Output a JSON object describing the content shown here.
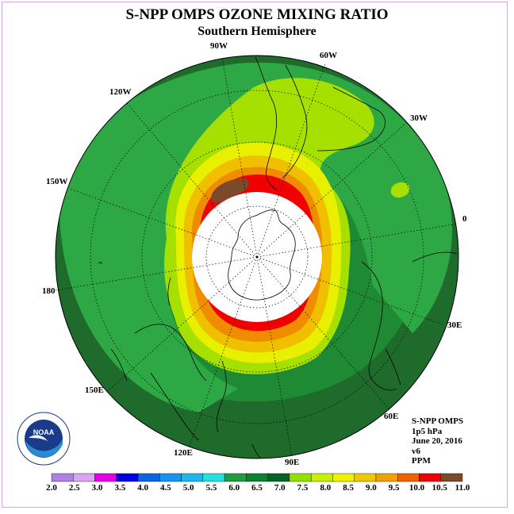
{
  "title": "S-NPP OMPS OZONE MIXING RATIO",
  "subtitle": "Southern Hemisphere",
  "longitude_labels": {
    "w90": "90W",
    "w60": "60W",
    "w30": "30W",
    "zero": "0",
    "e30": "30E",
    "e60": "60E",
    "e90": "90E",
    "e120": "120E",
    "e150": "150E",
    "d180": "180",
    "w150": "150W",
    "w120": "120W"
  },
  "info": {
    "instrument": "S-NPP OMPS",
    "level": "1p5 hPa",
    "date": "June 20, 2016",
    "version": "v6",
    "units": "PPM"
  },
  "logo": {
    "text": "NOAA",
    "ring_text": "NATIONAL OCEANIC AND ATMOSPHERIC ADMINISTRATION · U.S. DEPARTMENT OF COMMERCE"
  },
  "colorbar": {
    "ticks": [
      "2.0",
      "2.5",
      "3.0",
      "3.5",
      "4.0",
      "4.5",
      "5.0",
      "5.5",
      "6.0",
      "6.5",
      "7.0",
      "7.5",
      "8.0",
      "8.5",
      "9.0",
      "9.5",
      "10.0",
      "10.5",
      "11.0"
    ],
    "colors": [
      "#b07ee8",
      "#d9a6f0",
      "#e600e6",
      "#0000e6",
      "#0a64e6",
      "#1496f0",
      "#1eb4f0",
      "#22e0e0",
      "#1e9e3c",
      "#0a8232",
      "#006428",
      "#96e000",
      "#c8f000",
      "#f0f000",
      "#f0c800",
      "#f0a000",
      "#f06400",
      "#f00000",
      "#7a4a2a"
    ]
  },
  "map_colors": {
    "outer": "#1f6b2c",
    "ring_dark": "#1e8a34",
    "ring_mid": "#2da845",
    "band_lime": "#a6e000",
    "band_yellow": "#e8f000",
    "band_gold": "#f0c000",
    "band_orange": "#f08c00",
    "band_red": "#f00000",
    "brown": "#7a4a2a",
    "hole": "#ffffff"
  }
}
